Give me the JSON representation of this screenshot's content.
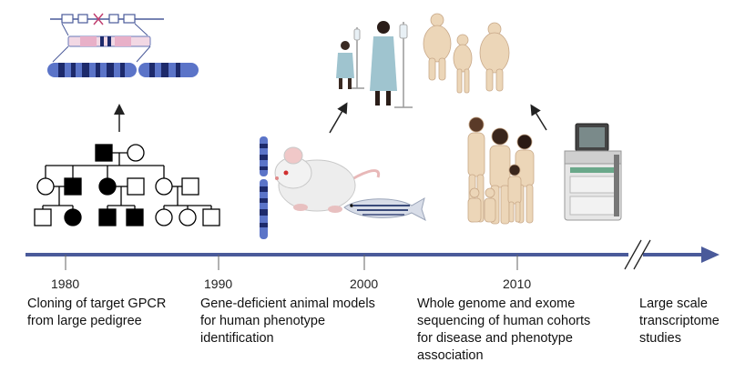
{
  "timeline": {
    "years": [
      "1980",
      "1990",
      "2000",
      "2010"
    ],
    "captions": [
      {
        "lines": [
          "Cloning of target GPCR",
          "from large pedigree"
        ]
      },
      {
        "lines": [
          "Gene-deficient animal models",
          "for human phenotype",
          "identification"
        ]
      },
      {
        "lines": [
          "Whole genome and exome",
          "sequencing of human cohorts",
          "for disease and phenotype",
          "association"
        ]
      },
      {
        "lines": [
          "Large scale",
          "transcriptome",
          "studies"
        ]
      }
    ]
  },
  "colors": {
    "axis": "#4a5a9a",
    "chromosome_dark": "#1d2a6b",
    "chromosome_light": "#5b74c8",
    "pedigree": "#000000",
    "skin": "#ecd6b8",
    "gown": "#9fc4cf"
  },
  "icons": [
    "chromosome-zoom-icon",
    "pedigree-icon",
    "patients-icon",
    "population-icon",
    "chromosome-icon",
    "mouse-icon",
    "zebrafish-icon",
    "family-cohort-icon",
    "sequencer-icon"
  ]
}
